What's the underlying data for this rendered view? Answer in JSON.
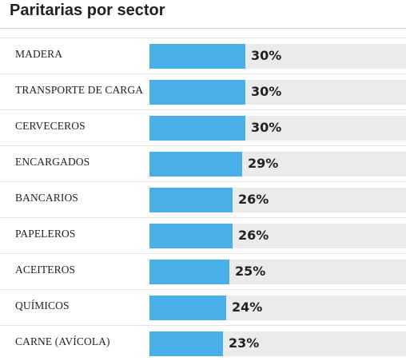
{
  "chart_data": {
    "type": "bar",
    "orientation": "horizontal",
    "title": "Paritarias por sector",
    "categories": [
      "MADERA",
      "TRANSPORTE DE CARGA",
      "CERVECEROS",
      "ENCARGADOS",
      "BANCARIOS",
      "PAPELEROS",
      "ACEITEROS",
      "QUÍMICOS",
      "CARNE (AVÍCOLA)"
    ],
    "values": [
      30,
      30,
      30,
      29,
      26,
      26,
      25,
      24,
      23
    ],
    "value_labels": [
      "30%",
      "30%",
      "30%",
      "29%",
      "26%",
      "26%",
      "25%",
      "24%",
      "23%"
    ],
    "unit": "%",
    "xlim": [
      0,
      80
    ],
    "bar_color": "#4aaee8",
    "track_color": "#ebebeb",
    "grid": false,
    "legend": "none"
  }
}
